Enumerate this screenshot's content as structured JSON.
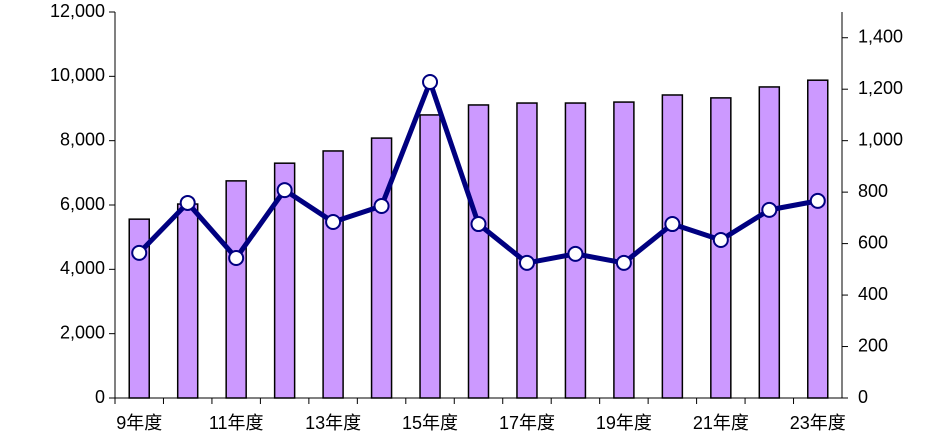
{
  "chart_data": {
    "type": "bar-line",
    "categories": [
      "9年度",
      null,
      "11年度",
      null,
      "13年度",
      null,
      "15年度",
      null,
      "17年度",
      null,
      "19年度",
      null,
      "21年度",
      null,
      "23年度"
    ],
    "series": [
      {
        "type": "bar",
        "color": "#cc99ff",
        "values": [
          5560,
          6030,
          6750,
          7300,
          7680,
          8080,
          8800,
          9110,
          9170,
          9170,
          9200,
          9420,
          9330,
          9670,
          9880
        ]
      },
      {
        "type": "line",
        "axis": "y2",
        "color": "#000080",
        "values": [
          564,
          758,
          544,
          808,
          684,
          746,
          1228,
          676,
          525,
          560,
          525,
          676,
          614,
          731,
          766
        ]
      }
    ],
    "ylim": [
      0,
      12000
    ],
    "yticks": [
      0,
      {
        "value": 2000,
        "label": "2,000"
      },
      {
        "value": 4000,
        "label": "4,000"
      },
      {
        "value": 6000,
        "label": "6,000"
      },
      {
        "value": 8000,
        "label": "8,000"
      },
      {
        "value": 10000,
        "label": "10,000"
      },
      {
        "value": 12000,
        "label": "12,000"
      }
    ],
    "y2lim": [
      0,
      1500
    ],
    "y2ticks": [
      0,
      200,
      400,
      600,
      800,
      {
        "value": 1000,
        "label": "1,000"
      },
      {
        "value": 1200,
        "label": "1,200"
      },
      {
        "value": 1400,
        "label": "1,400"
      }
    ]
  }
}
